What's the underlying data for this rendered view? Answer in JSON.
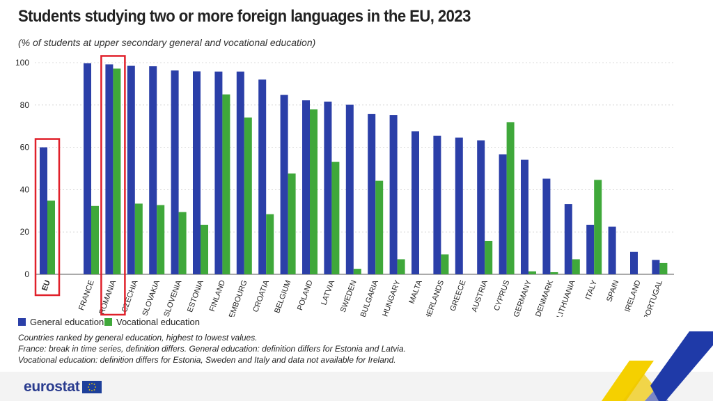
{
  "title": "Students studying two or more foreign languages in the EU, 2023",
  "subtitle": "(% of students at upper secondary general and vocational education)",
  "legend": {
    "general": "General education",
    "vocational": "Vocational education"
  },
  "notes": [
    "Countries ranked by general education, highest to lowest values.",
    "France: break in time series, definition differs. General education: definition differs for Estonia and Latvia.",
    "Vocational education: definition differs for Estonia, Sweden and Italy and data not available for Ireland."
  ],
  "logo_text": "eurostat",
  "colors": {
    "general": "#2b3fa8",
    "vocational": "#3fa83a",
    "highlight": "#e0202a"
  },
  "chart_data": {
    "type": "bar",
    "title": "Students studying two or more foreign languages in the EU, 2023",
    "subtitle": "(% of students at upper secondary general and vocational education)",
    "categories": [
      "EU",
      "FRANCE",
      "ROMANIA",
      "CZECHIA",
      "SLOVAKIA",
      "SLOVENIA",
      "ESTONIA",
      "FINLAND",
      "LUXEMBOURG",
      "CROATIA",
      "BELGIUM",
      "POLAND",
      "LATVIA",
      "SWEDEN",
      "BULGARIA",
      "HUNGARY",
      "MALTA",
      "NETHERLANDS",
      "GREECE",
      "AUSTRIA",
      "CYPRUS",
      "GERMANY",
      "DENMARK",
      "LITHUANIA",
      "ITALY",
      "SPAIN",
      "IRELAND",
      "PORTUGAL"
    ],
    "series": [
      {
        "name": "General education",
        "values": [
          60,
          99.7,
          99.2,
          98.5,
          98.3,
          96.3,
          95.9,
          95.8,
          95.8,
          92.0,
          84.8,
          82.2,
          81.6,
          80.1,
          75.7,
          75.3,
          67.6,
          65.5,
          64.6,
          63.3,
          56.7,
          54.1,
          45.2,
          33.2,
          23.4,
          22.5,
          10.6,
          6.8
        ]
      },
      {
        "name": "Vocational education",
        "values": [
          34.8,
          32.3,
          97.2,
          33.4,
          32.7,
          29.4,
          23.4,
          85.0,
          74.1,
          28.4,
          47.6,
          77.9,
          53.1,
          2.6,
          44.2,
          7.1,
          0,
          9.4,
          0,
          15.8,
          71.9,
          1.4,
          1.0,
          7.1,
          44.6,
          0,
          0,
          5.3
        ]
      }
    ],
    "ylim": [
      0,
      100
    ],
    "yticks": [
      0,
      20,
      40,
      60,
      80,
      100
    ],
    "grid": true,
    "legend_position": "bottom-left",
    "highlighted": [
      "EU",
      "ROMANIA"
    ]
  }
}
